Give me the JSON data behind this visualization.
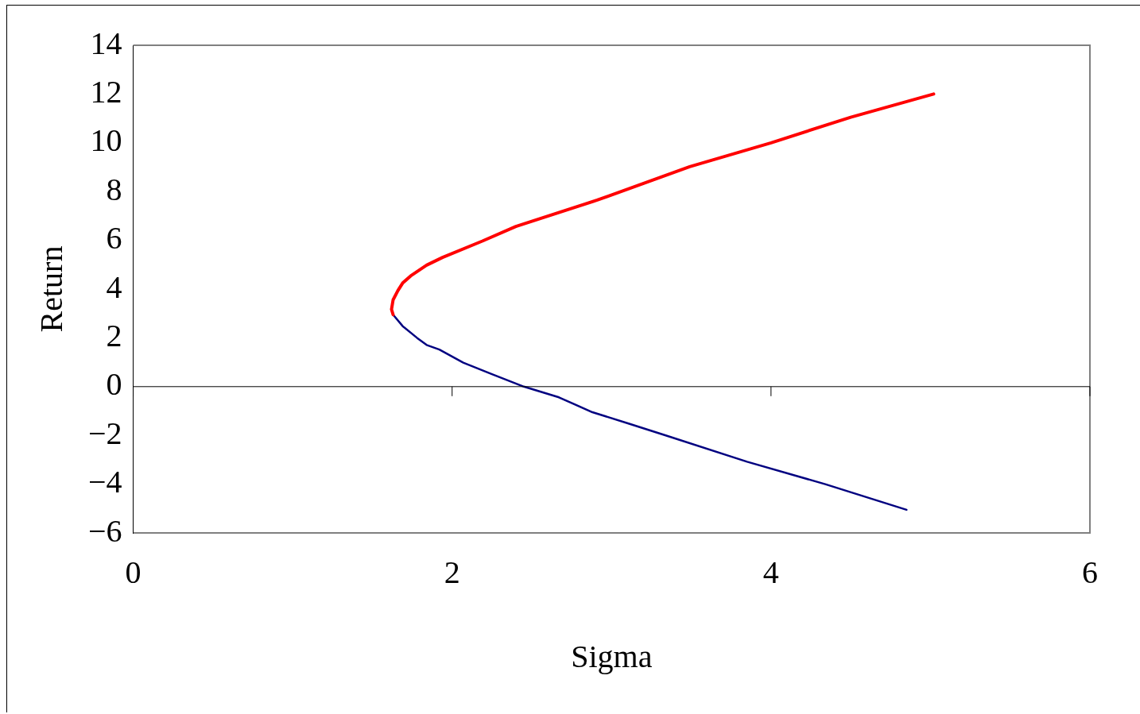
{
  "chart_data": {
    "type": "line",
    "xlabel": "Sigma",
    "ylabel": "Return",
    "xlim": [
      0,
      6
    ],
    "xticks": [
      0,
      2,
      4,
      6
    ],
    "ylim": [
      -6,
      14
    ],
    "yticks": [
      -6,
      -4,
      -2,
      0,
      2,
      4,
      6,
      8,
      10,
      12,
      14
    ],
    "grid": false,
    "legend": false,
    "marker": "none",
    "line_style": "solid",
    "ref_lines": [
      {
        "axis": "y",
        "value": 0,
        "color": "#000000"
      }
    ],
    "series": [
      {
        "color": "#ff0000",
        "x": [
          1.63,
          1.62,
          1.63,
          1.66,
          1.69,
          1.74,
          1.84,
          1.94,
          2.19,
          2.4,
          2.91,
          3.49,
          4.0,
          4.5,
          5.02
        ],
        "values": [
          2.95,
          3.17,
          3.56,
          3.94,
          4.25,
          4.54,
          4.98,
          5.3,
          5.97,
          6.57,
          7.65,
          9.02,
          10.0,
          11.05,
          12.0
        ]
      },
      {
        "color": "#000080",
        "x": [
          1.63,
          1.69,
          1.78,
          1.84,
          1.92,
          2.07,
          2.25,
          2.45,
          2.67,
          2.88,
          3.11,
          3.34,
          3.85,
          4.34,
          4.85
        ],
        "values": [
          2.95,
          2.48,
          2.0,
          1.71,
          1.52,
          0.98,
          0.51,
          0.0,
          -0.44,
          -1.05,
          -1.52,
          -2.0,
          -3.08,
          -4.0,
          -5.05
        ]
      }
    ]
  }
}
